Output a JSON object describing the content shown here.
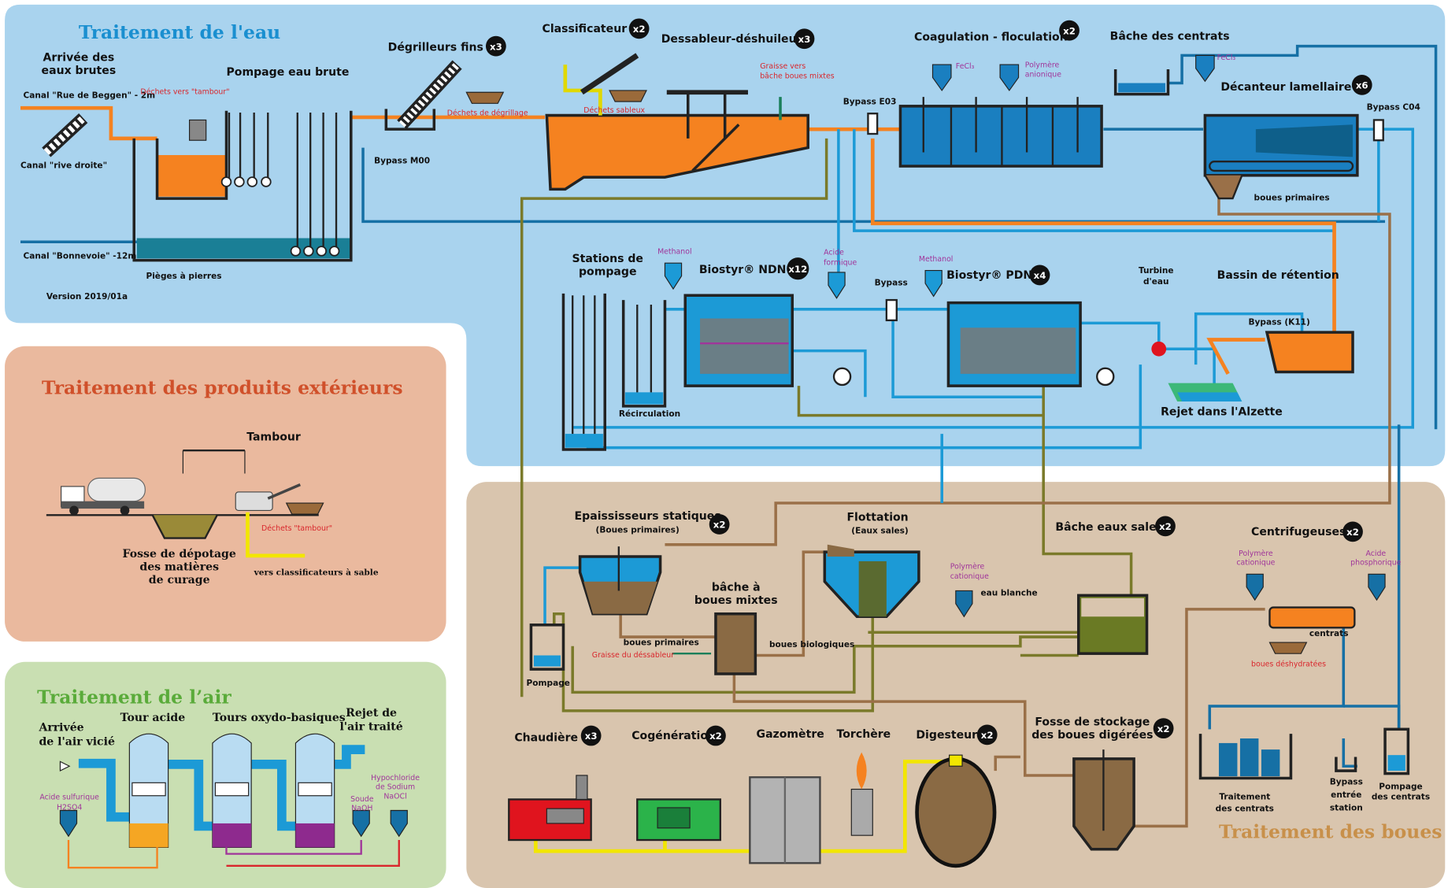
{
  "water": {
    "title": "Traitement de l'eau",
    "raw_inlet": [
      "Arrivée des",
      "eaux brutes"
    ],
    "raw_pumping": "Pompage eau brute",
    "canal_beggen": "Canal \"Rue de Beggen\" - 2m",
    "canal_rive": "Canal \"rive droite\"",
    "waste_to_drum": "Déchets vers \"tambour\"",
    "canal_bonnevoie": "Canal \"Bonnevoie\" -12m",
    "stone_traps": "Pièges à pierres",
    "version": "Version 2019/01a",
    "bypass_m00": "Bypass M00",
    "fine_screens": {
      "label": "Dégrilleurs fins",
      "count": "x3"
    },
    "screenings": "Déchets de dégrillage",
    "classifier": {
      "label": "Classificateur",
      "count": "x2"
    },
    "sand_waste": "Déchets sableux",
    "grit_removal": {
      "label": "Dessableur-déshuileur",
      "count": "x3"
    },
    "grease": [
      "Graisse vers",
      "bâche boues mixtes"
    ],
    "bypass_e03": "Bypass E03",
    "coagulation": {
      "label": "Coagulation - floculation",
      "count": "x2"
    },
    "fecl3_a": "FeCl₃",
    "polymer_anionic": [
      "Polymère",
      "anionique"
    ],
    "centrate_tank": "Bâche des centrats",
    "fecl3_b": "FeCl₃",
    "lamellar": {
      "label": "Décanteur lamellaire",
      "count": "x6"
    },
    "bypass_c04": "Bypass C04",
    "primary_sludge": "boues primaires",
    "pumping_stations": [
      "Stations de",
      "pompage"
    ],
    "methanol_a": "Methanol",
    "ndn": {
      "label": "Biostyr® NDN",
      "count": "x12"
    },
    "formic": [
      "Acide",
      "formique"
    ],
    "bypass": "Bypass",
    "methanol_b": "Methanol",
    "pdn": {
      "label": "Biostyr® PDN",
      "count": "x4"
    },
    "turbine": [
      "Turbine",
      "d'eau"
    ],
    "retention": "Bassin de rétention",
    "bypass_k11": "Bypass (K11)",
    "recirculation": "Récirculation",
    "discharge": "Rejet dans  l'Alzette"
  },
  "exterior": {
    "title": "Traitement des produits extérieurs",
    "drum": "Tambour",
    "drum_waste": "Déchets \"tambour\"",
    "dump_pit": [
      "Fosse de dépotage",
      "des matières",
      "de curage"
    ],
    "to_classifiers": "vers classificateurs à sable"
  },
  "air": {
    "title": "Traitement de l’air",
    "inlet": [
      "Arrivée",
      "de l'air vicié"
    ],
    "acid_tower": "Tour acide",
    "oxy_towers": "Tours oxydo-basiques",
    "outlet": [
      "Rejet de",
      "l'air traité"
    ],
    "sulfuric": [
      "Acide sulfurique",
      "H2SO4"
    ],
    "soda": [
      "Soude",
      "NaOH"
    ],
    "hypochlorite": [
      "Hypochloride",
      "de Sodium",
      "NaOCl"
    ]
  },
  "sludge": {
    "title": "Traitement des boues",
    "thickeners": {
      "label": "Epaississeurs statiques",
      "sub": "(Boues primaires)",
      "count": "x2"
    },
    "flotation": {
      "label": "Flottation",
      "sub": "(Eaux sales)"
    },
    "dirty_water_tank": {
      "label": "Bâche eaux sales",
      "count": "x2"
    },
    "centrifuges": {
      "label": "Centrifugeuses",
      "count": "x2"
    },
    "polymer_a": [
      "Polymère",
      "cationique"
    ],
    "phosphoric": [
      "Acide",
      "phosphorique"
    ],
    "centrates": "centrats",
    "dewatered": "boues déshydratées",
    "mixed_tank": [
      "bâche à",
      "boues mixtes"
    ],
    "primary": "boues primaires",
    "grease": "Graisse du déssableur",
    "biological": "boues biologiques",
    "polymer_b": [
      "Polymère",
      "cationique"
    ],
    "white_water": "eau blanche",
    "pumping": "Pompage",
    "boiler": {
      "label": "Chaudière",
      "count": "x3"
    },
    "cogeneration": {
      "label": "Cogénération",
      "count": "x2"
    },
    "gasometer": "Gazomètre",
    "flare": "Torchère",
    "digester": {
      "label": "Digesteur",
      "count": "x2"
    },
    "storage": {
      "label": [
        "Fosse de stockage",
        "des boues digérées"
      ],
      "count": "x2"
    },
    "centrate_treatment": [
      "Traitement",
      "des centrats"
    ],
    "bypass_inlet": [
      "Bypass",
      "entrée",
      "station"
    ],
    "centrate_pumping": [
      "Pompage",
      "des centrats"
    ]
  }
}
